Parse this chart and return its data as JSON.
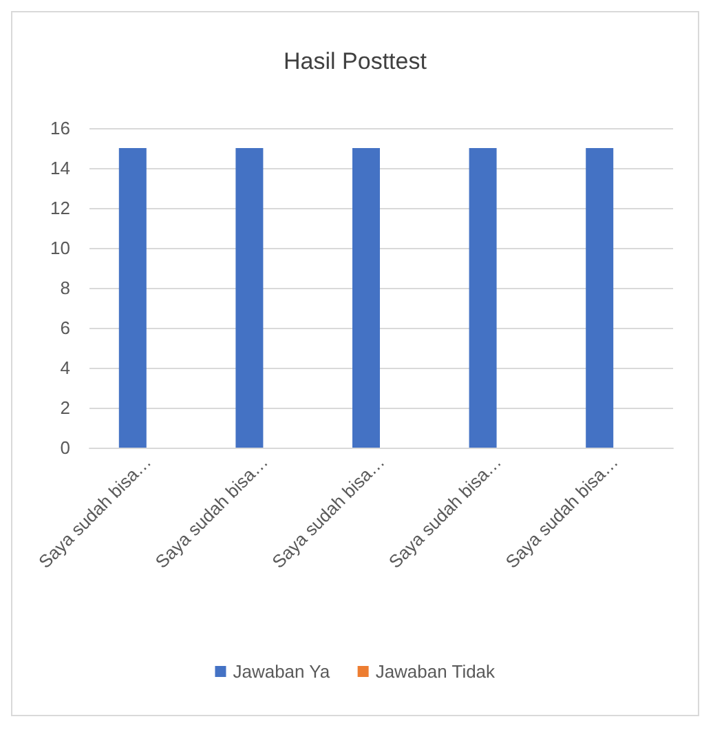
{
  "chart_data": {
    "type": "bar",
    "title": "Hasil Posttest",
    "categories": [
      "Saya sudah bisa…",
      "Saya sudah bisa…",
      "Saya sudah bisa…",
      "Saya sudah bisa…",
      "Saya sudah bisa…"
    ],
    "series": [
      {
        "name": "Jawaban Ya",
        "color": "#4472c4",
        "values": [
          15,
          15,
          15,
          15,
          15
        ]
      },
      {
        "name": "Jawaban Tidak",
        "color": "#ed7d31",
        "values": [
          0,
          0,
          0,
          0,
          0
        ]
      }
    ],
    "ylim": [
      0,
      16
    ],
    "yticks": [
      0,
      2,
      4,
      6,
      8,
      10,
      12,
      14,
      16
    ],
    "grid": "y",
    "legend": "bottom"
  }
}
